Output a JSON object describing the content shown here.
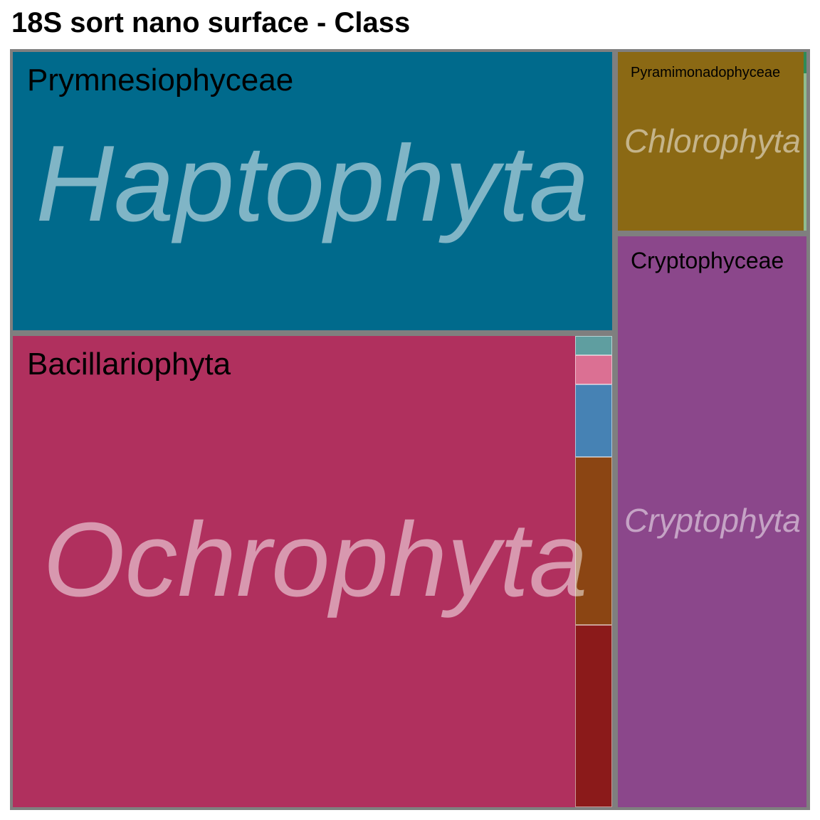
{
  "chart_data": {
    "type": "treemap",
    "title": "18S sort nano surface - Class",
    "groups": [
      {
        "phylum": "Haptophyta",
        "color": "#006A8C",
        "classes": [
          {
            "name": "Prymnesiophyceae",
            "color": "#006A8C",
            "share": 0.2735
          }
        ]
      },
      {
        "phylum": "Ochrophyta",
        "color": "#B0305E",
        "classes": [
          {
            "name": "Bacillariophyta",
            "color": "#B0305E",
            "share": 0.4355
          },
          {
            "name": "",
            "color": "#5F9EA0",
            "share": 0.0014
          },
          {
            "name": "",
            "color": "#DB7093",
            "share": 0.0021
          },
          {
            "name": "",
            "color": "#4682B4",
            "share": 0.0051
          },
          {
            "name": "",
            "color": "#8B4513",
            "share": 0.0119
          },
          {
            "name": "",
            "color": "#8B1A1A",
            "share": 0.0129
          }
        ]
      },
      {
        "phylum": "Chlorophyta",
        "color": "#8B6914",
        "classes": [
          {
            "name": "Pyramimonadophyceae",
            "color": "#8B6914",
            "share": 0.053
          },
          {
            "name": "",
            "color": "#8FBC8F",
            "share": 0.0002
          },
          {
            "name": "",
            "color": "#2E8B57",
            "share": 0.0001
          }
        ]
      },
      {
        "phylum": "Cryptophyta",
        "color": "#8B478B",
        "classes": [
          {
            "name": "Cryptophyceae",
            "color": "#8B478B",
            "share": 0.214
          }
        ]
      }
    ]
  }
}
